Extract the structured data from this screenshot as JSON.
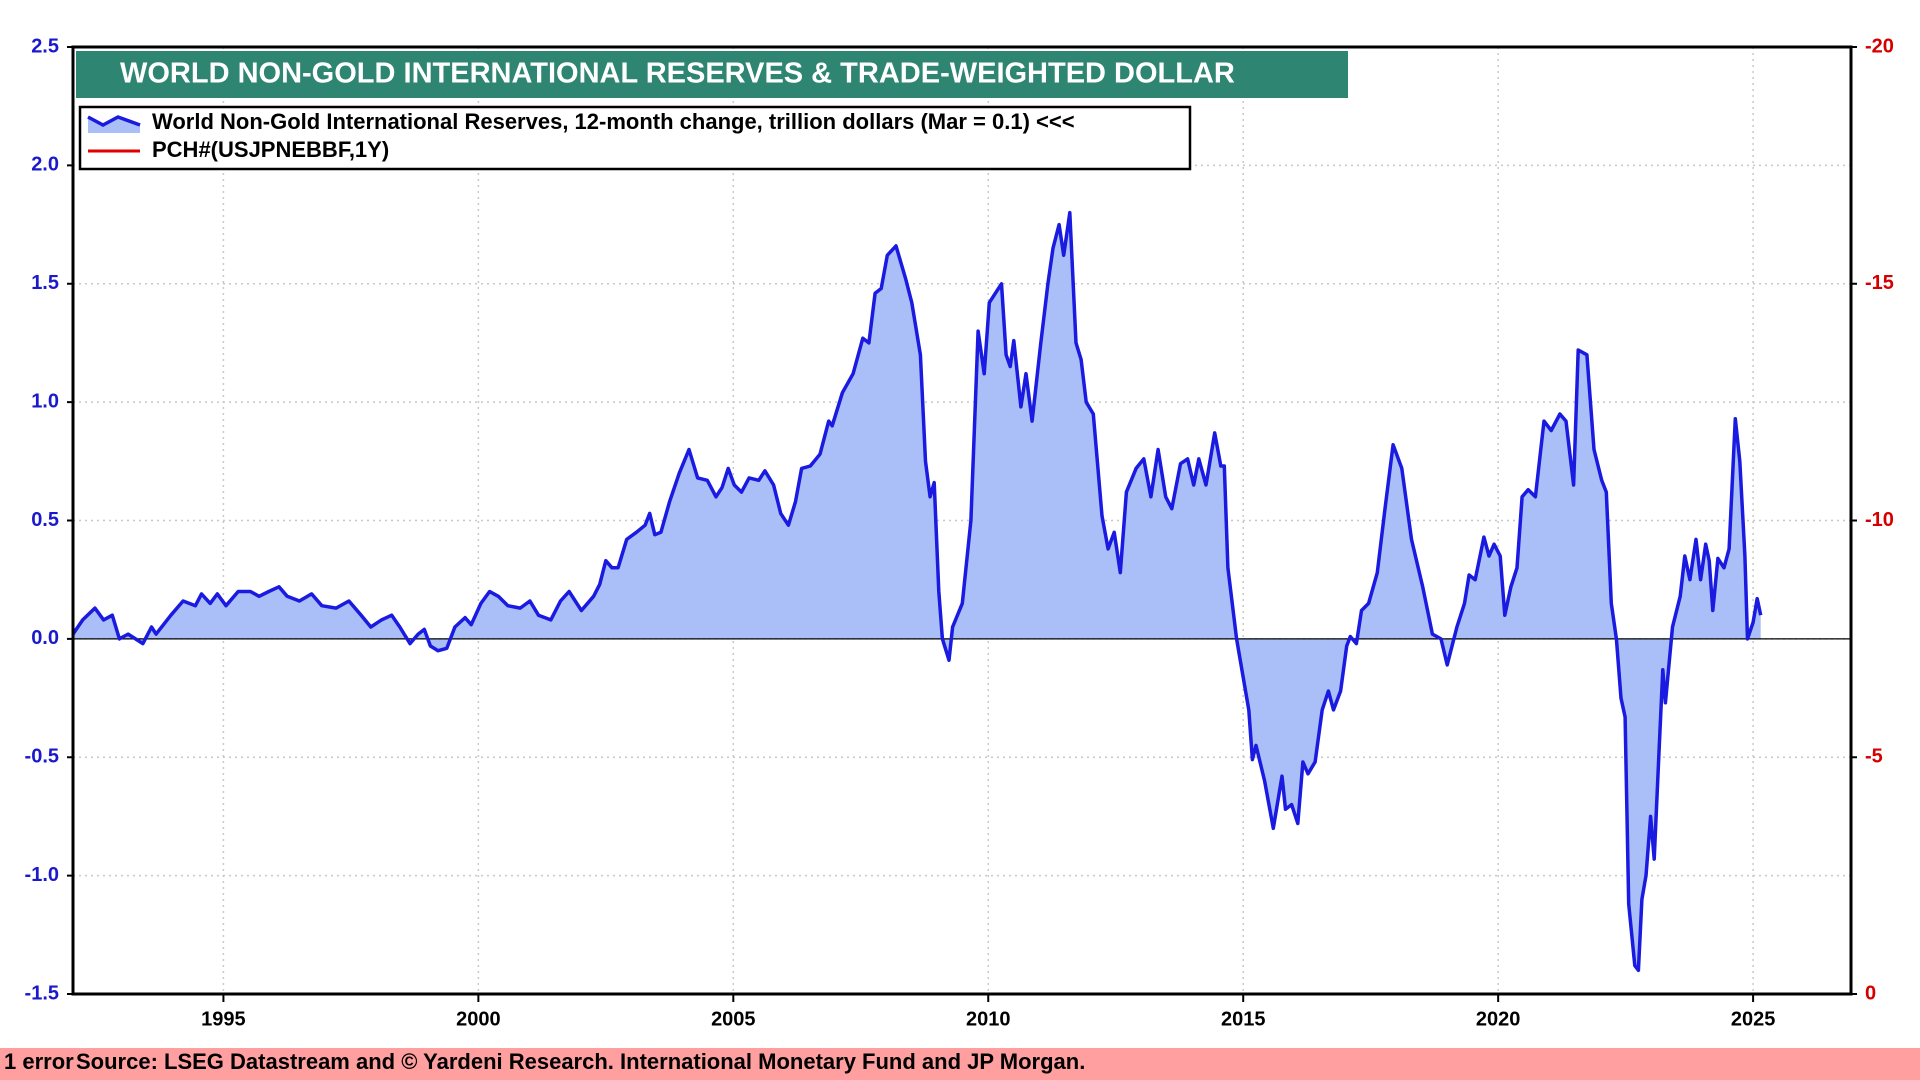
{
  "chart_data": {
    "type": "area",
    "title": "WORLD NON-GOLD INTERNATIONAL RESERVES & TRADE-WEIGHTED DOLLAR",
    "source": "Source: LSEG Datastream and © Yardeni Research. International Monetary Fund and JP Morgan.",
    "error_note": "1 error",
    "x": [
      1992.05,
      1992.24,
      1992.48,
      1992.65,
      1992.82,
      1992.96,
      1993.13,
      1993.42,
      1993.59,
      1993.68,
      1993.97,
      1994.21,
      1994.45,
      1994.57,
      1994.74,
      1994.88,
      1995.05,
      1995.29,
      1995.53,
      1995.7,
      1995.89,
      1996.09,
      1996.25,
      1996.49,
      1996.73,
      1996.93,
      1997.21,
      1997.46,
      1997.7,
      1997.89,
      1998.1,
      1998.3,
      1998.46,
      1998.66,
      1998.82,
      1998.94,
      1999.06,
      1999.21,
      1999.38,
      1999.54,
      1999.74,
      1999.86,
      2000.05,
      2000.22,
      2000.39,
      2000.58,
      2000.82,
      2001.01,
      2001.18,
      2001.42,
      2001.61,
      2001.78,
      2002.02,
      2002.26,
      2002.38,
      2002.5,
      2002.62,
      2002.74,
      2002.91,
      2003.1,
      2003.27,
      2003.36,
      2003.46,
      2003.58,
      2003.75,
      2003.94,
      2004.13,
      2004.3,
      2004.49,
      2004.66,
      2004.78,
      2004.9,
      2005.02,
      2005.16,
      2005.31,
      2005.5,
      2005.62,
      2005.79,
      2005.93,
      2006.08,
      2006.22,
      2006.34,
      2006.51,
      2006.7,
      2006.87,
      2006.94,
      2007.14,
      2007.35,
      2007.54,
      2007.66,
      2007.78,
      2007.9,
      2008.02,
      2008.19,
      2008.38,
      2008.5,
      2008.67,
      2008.77,
      2008.86,
      2008.94,
      2009.03,
      2009.1,
      2009.23,
      2009.3,
      2009.49,
      2009.66,
      2009.8,
      2009.92,
      2010.02,
      2010.14,
      2010.26,
      2010.35,
      2010.43,
      2010.5,
      2010.64,
      2010.74,
      2010.86,
      2011.03,
      2011.17,
      2011.27,
      2011.39,
      2011.48,
      2011.6,
      2011.72,
      2011.82,
      2011.92,
      2012.06,
      2012.23,
      2012.35,
      2012.47,
      2012.59,
      2012.71,
      2012.9,
      2013.05,
      2013.19,
      2013.33,
      2013.48,
      2013.6,
      2013.77,
      2013.91,
      2014.03,
      2014.13,
      2014.27,
      2014.44,
      2014.56,
      2014.63,
      2014.7,
      2014.87,
      2014.99,
      2015.11,
      2015.18,
      2015.25,
      2015.42,
      2015.59,
      2015.76,
      2015.83,
      2015.95,
      2016.07,
      2016.17,
      2016.27,
      2016.41,
      2016.55,
      2016.67,
      2016.77,
      2016.91,
      2017.03,
      2017.1,
      2017.22,
      2017.32,
      2017.46,
      2017.63,
      2017.78,
      2017.94,
      2018.11,
      2018.3,
      2018.52,
      2018.71,
      2018.88,
      2019.0,
      2019.19,
      2019.34,
      2019.43,
      2019.55,
      2019.72,
      2019.82,
      2019.92,
      2020.04,
      2020.13,
      2020.25,
      2020.37,
      2020.47,
      2020.59,
      2020.73,
      2020.9,
      2021.04,
      2021.21,
      2021.33,
      2021.48,
      2021.57,
      2021.74,
      2021.88,
      2022.03,
      2022.12,
      2022.22,
      2022.32,
      2022.41,
      2022.49,
      2022.56,
      2022.68,
      2022.75,
      2022.82,
      2022.9,
      2022.99,
      2023.06,
      2023.16,
      2023.23,
      2023.28,
      2023.42,
      2023.57,
      2023.66,
      2023.76,
      2023.88,
      2023.97,
      2024.07,
      2024.14,
      2024.21,
      2024.31,
      2024.43,
      2024.53,
      2024.65,
      2024.74,
      2024.84,
      2024.89,
      2025.0,
      2025.08,
      2025.15
    ],
    "series": [
      {
        "name": "World Non-Gold International Reserves, 12-month change, trillion dollars (Mar = 0.1) <<<",
        "color": "#1a1ae0",
        "fill": "#aabff7",
        "values": [
          0.02,
          0.08,
          0.13,
          0.08,
          0.1,
          0.0,
          0.02,
          -0.02,
          0.05,
          0.02,
          0.1,
          0.16,
          0.14,
          0.19,
          0.15,
          0.19,
          0.14,
          0.2,
          0.2,
          0.18,
          0.2,
          0.22,
          0.18,
          0.16,
          0.19,
          0.14,
          0.13,
          0.16,
          0.1,
          0.05,
          0.08,
          0.1,
          0.05,
          -0.02,
          0.02,
          0.04,
          -0.03,
          -0.05,
          -0.04,
          0.05,
          0.09,
          0.06,
          0.15,
          0.2,
          0.18,
          0.14,
          0.13,
          0.16,
          0.1,
          0.08,
          0.16,
          0.2,
          0.12,
          0.18,
          0.23,
          0.33,
          0.3,
          0.3,
          0.42,
          0.45,
          0.48,
          0.53,
          0.44,
          0.45,
          0.58,
          0.7,
          0.8,
          0.68,
          0.67,
          0.6,
          0.64,
          0.72,
          0.65,
          0.62,
          0.68,
          0.67,
          0.71,
          0.65,
          0.53,
          0.48,
          0.58,
          0.72,
          0.73,
          0.78,
          0.92,
          0.9,
          1.04,
          1.12,
          1.27,
          1.25,
          1.46,
          1.48,
          1.62,
          1.66,
          1.52,
          1.42,
          1.2,
          0.75,
          0.6,
          0.66,
          0.2,
          0.0,
          -0.09,
          0.05,
          0.15,
          0.5,
          1.3,
          1.12,
          1.42,
          1.46,
          1.5,
          1.2,
          1.15,
          1.26,
          0.98,
          1.12,
          0.92,
          1.25,
          1.5,
          1.65,
          1.75,
          1.62,
          1.8,
          1.25,
          1.18,
          1.0,
          0.95,
          0.52,
          0.38,
          0.45,
          0.28,
          0.62,
          0.72,
          0.76,
          0.6,
          0.8,
          0.6,
          0.55,
          0.74,
          0.76,
          0.65,
          0.76,
          0.65,
          0.87,
          0.73,
          0.73,
          0.3,
          0.0,
          -0.15,
          -0.3,
          -0.51,
          -0.45,
          -0.6,
          -0.8,
          -0.58,
          -0.72,
          -0.7,
          -0.78,
          -0.52,
          -0.57,
          -0.52,
          -0.3,
          -0.22,
          -0.3,
          -0.22,
          -0.03,
          0.01,
          -0.02,
          0.12,
          0.15,
          0.28,
          0.55,
          0.82,
          0.72,
          0.42,
          0.22,
          0.02,
          0.0,
          -0.11,
          0.05,
          0.15,
          0.27,
          0.25,
          0.43,
          0.35,
          0.4,
          0.35,
          0.1,
          0.22,
          0.3,
          0.6,
          0.63,
          0.6,
          0.92,
          0.88,
          0.95,
          0.92,
          0.65,
          1.22,
          1.2,
          0.8,
          0.67,
          0.62,
          0.15,
          0.0,
          -0.25,
          -0.33,
          -1.12,
          -1.38,
          -1.4,
          -1.1,
          -1.0,
          -0.75,
          -0.93,
          -0.45,
          -0.13,
          -0.27,
          0.05,
          0.18,
          0.35,
          0.25,
          0.42,
          0.25,
          0.4,
          0.33,
          0.12,
          0.34,
          0.3,
          0.38,
          0.93,
          0.75,
          0.35,
          0.0,
          0.07,
          0.17,
          0.1
        ]
      },
      {
        "name": "PCH#(USJPNEBBF,1Y)",
        "color": "#e00000",
        "axis": "y2"
      }
    ],
    "xlim": [
      1992.05,
      2026.92
    ],
    "xticks": [
      1995,
      2000,
      2005,
      2010,
      2015,
      2020,
      2025
    ],
    "ylim": [
      -1.5,
      2.5
    ],
    "yticks": [
      {
        "value": -1.5,
        "label": "-1.5"
      },
      {
        "value": -1,
        "label": "-1.0"
      },
      -0.5,
      {
        "value": 0,
        "label": "0.0"
      },
      0.5,
      {
        "value": 1,
        "label": "1.0"
      },
      1.5,
      {
        "value": 2,
        "label": "2.0"
      },
      2.5
    ],
    "y2lim": [
      0,
      -20
    ],
    "y2ticks": [
      0,
      -5,
      -10,
      -15,
      -20
    ],
    "grid": true
  }
}
